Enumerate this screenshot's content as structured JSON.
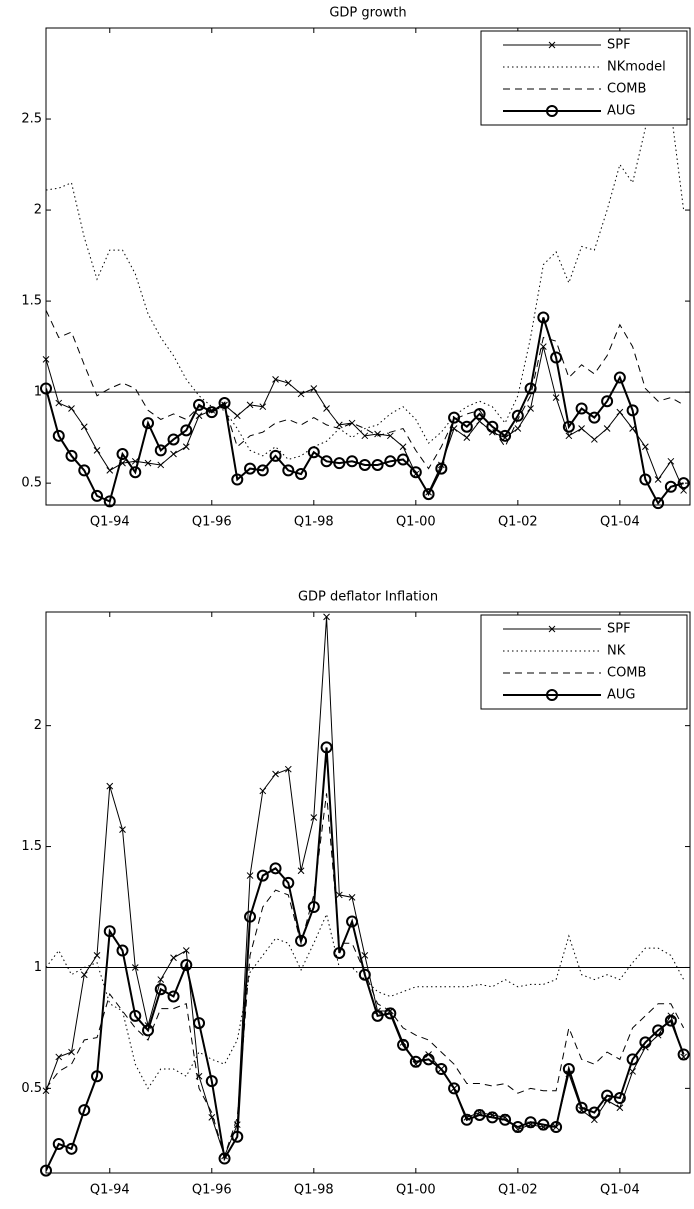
{
  "chart_data": [
    {
      "type": "line",
      "title": "GDP growth",
      "x": [
        1992.75,
        1993,
        1993.25,
        1993.5,
        1993.75,
        1994,
        1994.25,
        1994.5,
        1994.75,
        1995,
        1995.25,
        1995.5,
        1995.75,
        1996,
        1996.25,
        1996.5,
        1996.75,
        1997,
        1997.25,
        1997.5,
        1997.75,
        1998,
        1998.25,
        1998.5,
        1998.75,
        1999,
        1999.25,
        1999.5,
        1999.75,
        2000,
        2000.25,
        2000.5,
        2000.75,
        2001,
        2001.25,
        2001.5,
        2001.75,
        2002,
        2002.25,
        2002.5,
        2002.75,
        2003,
        2003.25,
        2003.5,
        2003.75,
        2004,
        2004.25,
        2004.5,
        2004.75,
        2005,
        2005.25
      ],
      "xlim": [
        1992.75,
        2005.375
      ],
      "xticks": [
        {
          "value": 1994,
          "label": "Q1-94"
        },
        {
          "value": 1996,
          "label": "Q1-96"
        },
        {
          "value": 1998,
          "label": "Q1-98"
        },
        {
          "value": 2000,
          "label": "Q1-00"
        },
        {
          "value": 2002,
          "label": "Q1-02"
        },
        {
          "value": 2004,
          "label": "Q1-04"
        }
      ],
      "ylim": [
        0.38,
        3.0
      ],
      "yticks": [
        0.5,
        1,
        1.5,
        2,
        2.5
      ],
      "reference_line": 1,
      "legend": "upper right",
      "series": [
        {
          "name": "SPF",
          "color": "#000000",
          "style": "solid",
          "marker": "x",
          "width": 1,
          "values": [
            1.18,
            0.94,
            0.91,
            0.81,
            0.68,
            0.57,
            0.61,
            0.62,
            0.61,
            0.6,
            0.66,
            0.7,
            0.87,
            0.9,
            0.93,
            0.87,
            0.93,
            0.92,
            1.07,
            1.05,
            0.99,
            1.02,
            0.91,
            0.82,
            0.83,
            0.76,
            0.77,
            0.76,
            0.7,
            0.55,
            0.45,
            0.6,
            0.8,
            0.75,
            0.84,
            0.78,
            0.75,
            0.8,
            0.91,
            1.25,
            0.97,
            0.76,
            0.8,
            0.74,
            0.8,
            0.89,
            0.8,
            0.7,
            0.52,
            0.62,
            0.46
          ]
        },
        {
          "name": "NKmodel",
          "color": "#000000",
          "style": "dotted",
          "marker": "none",
          "width": 1,
          "values": [
            2.11,
            2.12,
            2.15,
            1.85,
            1.62,
            1.78,
            1.78,
            1.65,
            1.43,
            1.3,
            1.2,
            1.07,
            0.98,
            0.92,
            0.9,
            0.8,
            0.68,
            0.65,
            0.7,
            0.63,
            0.65,
            0.7,
            0.73,
            0.8,
            0.75,
            0.8,
            0.82,
            0.88,
            0.92,
            0.85,
            0.72,
            0.78,
            0.87,
            0.92,
            0.95,
            0.92,
            0.83,
            0.98,
            1.3,
            1.7,
            1.77,
            1.6,
            1.8,
            1.78,
            2.0,
            2.25,
            2.15,
            2.45,
            2.9,
            2.55,
            2.0
          ]
        },
        {
          "name": "COMB",
          "color": "#000000",
          "style": "dashed",
          "marker": "none",
          "width": 1,
          "values": [
            1.45,
            1.3,
            1.33,
            1.15,
            0.98,
            1.02,
            1.05,
            1.02,
            0.9,
            0.85,
            0.88,
            0.85,
            0.92,
            0.9,
            0.92,
            0.7,
            0.76,
            0.78,
            0.83,
            0.85,
            0.82,
            0.86,
            0.82,
            0.8,
            0.83,
            0.8,
            0.76,
            0.78,
            0.8,
            0.68,
            0.58,
            0.7,
            0.85,
            0.88,
            0.9,
            0.8,
            0.7,
            0.85,
            0.98,
            1.3,
            1.28,
            1.08,
            1.15,
            1.1,
            1.2,
            1.37,
            1.25,
            1.02,
            0.95,
            0.97,
            0.93
          ]
        },
        {
          "name": "AUG",
          "color": "#000000",
          "style": "solid",
          "marker": "o",
          "width": 2,
          "values": [
            1.02,
            0.76,
            0.65,
            0.57,
            0.43,
            0.4,
            0.66,
            0.56,
            0.83,
            0.68,
            0.74,
            0.79,
            0.93,
            0.89,
            0.94,
            0.52,
            0.58,
            0.57,
            0.65,
            0.57,
            0.55,
            0.67,
            0.62,
            0.61,
            0.62,
            0.6,
            0.6,
            0.62,
            0.63,
            0.56,
            0.44,
            0.58,
            0.86,
            0.81,
            0.88,
            0.81,
            0.76,
            0.87,
            1.02,
            1.41,
            1.19,
            0.81,
            0.91,
            0.86,
            0.95,
            1.08,
            0.9,
            0.52,
            0.39,
            0.48,
            0.5
          ]
        }
      ]
    },
    {
      "type": "line",
      "title": "GDP deflator Inflation",
      "x": [
        1992.75,
        1993,
        1993.25,
        1993.5,
        1993.75,
        1994,
        1994.25,
        1994.5,
        1994.75,
        1995,
        1995.25,
        1995.5,
        1995.75,
        1996,
        1996.25,
        1996.5,
        1996.75,
        1997,
        1997.25,
        1997.5,
        1997.75,
        1998,
        1998.25,
        1998.5,
        1998.75,
        1999,
        1999.25,
        1999.5,
        1999.75,
        2000,
        2000.25,
        2000.5,
        2000.75,
        2001,
        2001.25,
        2001.5,
        2001.75,
        2002,
        2002.25,
        2002.5,
        2002.75,
        2003,
        2003.25,
        2003.5,
        2003.75,
        2004,
        2004.25,
        2004.5,
        2004.75,
        2005,
        2005.25
      ],
      "xlim": [
        1992.75,
        2005.375
      ],
      "xticks": [
        {
          "value": 1994,
          "label": "Q1-94"
        },
        {
          "value": 1996,
          "label": "Q1-96"
        },
        {
          "value": 1998,
          "label": "Q1-98"
        },
        {
          "value": 2000,
          "label": "Q1-00"
        },
        {
          "value": 2002,
          "label": "Q1-02"
        },
        {
          "value": 2004,
          "label": "Q1-04"
        }
      ],
      "ylim": [
        0.15,
        2.47
      ],
      "yticks": [
        0.5,
        1,
        1.5,
        2
      ],
      "reference_line": 1,
      "legend": "upper right",
      "series": [
        {
          "name": "SPF",
          "color": "#000000",
          "style": "solid",
          "marker": "x",
          "width": 1,
          "values": [
            0.49,
            0.63,
            0.65,
            0.97,
            1.05,
            1.75,
            1.57,
            1.0,
            0.76,
            0.95,
            1.04,
            1.07,
            0.55,
            0.38,
            0.22,
            0.35,
            1.38,
            1.73,
            1.8,
            1.82,
            1.4,
            1.62,
            2.45,
            1.3,
            1.29,
            1.05,
            0.82,
            0.82,
            0.69,
            0.6,
            0.64,
            0.58,
            0.5,
            0.38,
            0.4,
            0.39,
            0.38,
            0.33,
            0.35,
            0.34,
            0.34,
            0.56,
            0.41,
            0.37,
            0.45,
            0.42,
            0.57,
            0.67,
            0.72,
            0.8,
            0.63
          ]
        },
        {
          "name": "NK",
          "color": "#000000",
          "style": "dotted",
          "marker": "none",
          "width": 1,
          "values": [
            1.0,
            1.07,
            0.97,
            1.0,
            1.02,
            0.85,
            0.82,
            0.6,
            0.5,
            0.58,
            0.58,
            0.55,
            0.65,
            0.62,
            0.6,
            0.7,
            0.98,
            1.05,
            1.12,
            1.1,
            0.99,
            1.1,
            1.22,
            1.0,
            1.0,
            0.95,
            0.9,
            0.88,
            0.9,
            0.92,
            0.92,
            0.92,
            0.92,
            0.92,
            0.93,
            0.92,
            0.95,
            0.92,
            0.93,
            0.93,
            0.95,
            1.13,
            0.97,
            0.95,
            0.97,
            0.95,
            1.02,
            1.08,
            1.08,
            1.05,
            0.95
          ]
        },
        {
          "name": "COMB",
          "color": "#000000",
          "style": "dashed",
          "marker": "none",
          "width": 1,
          "values": [
            0.5,
            0.57,
            0.6,
            0.7,
            0.71,
            0.89,
            0.82,
            0.75,
            0.7,
            0.83,
            0.83,
            0.85,
            0.5,
            0.4,
            0.22,
            0.38,
            1.05,
            1.25,
            1.32,
            1.3,
            1.1,
            1.3,
            1.72,
            1.1,
            1.1,
            0.98,
            0.85,
            0.82,
            0.75,
            0.72,
            0.7,
            0.65,
            0.6,
            0.52,
            0.52,
            0.51,
            0.52,
            0.48,
            0.5,
            0.49,
            0.49,
            0.75,
            0.62,
            0.6,
            0.65,
            0.62,
            0.75,
            0.8,
            0.85,
            0.85,
            0.75
          ]
        },
        {
          "name": "AUG",
          "color": "#000000",
          "style": "solid",
          "marker": "o",
          "width": 2,
          "values": [
            0.16,
            0.27,
            0.25,
            0.41,
            0.55,
            1.15,
            1.07,
            0.8,
            0.74,
            0.91,
            0.88,
            1.01,
            0.77,
            0.53,
            0.21,
            0.3,
            1.21,
            1.38,
            1.41,
            1.35,
            1.11,
            1.25,
            1.91,
            1.06,
            1.19,
            0.97,
            0.8,
            0.81,
            0.68,
            0.61,
            0.62,
            0.58,
            0.5,
            0.37,
            0.39,
            0.38,
            0.37,
            0.34,
            0.36,
            0.35,
            0.34,
            0.58,
            0.42,
            0.4,
            0.47,
            0.46,
            0.62,
            0.69,
            0.74,
            0.78,
            0.64
          ]
        }
      ]
    }
  ]
}
